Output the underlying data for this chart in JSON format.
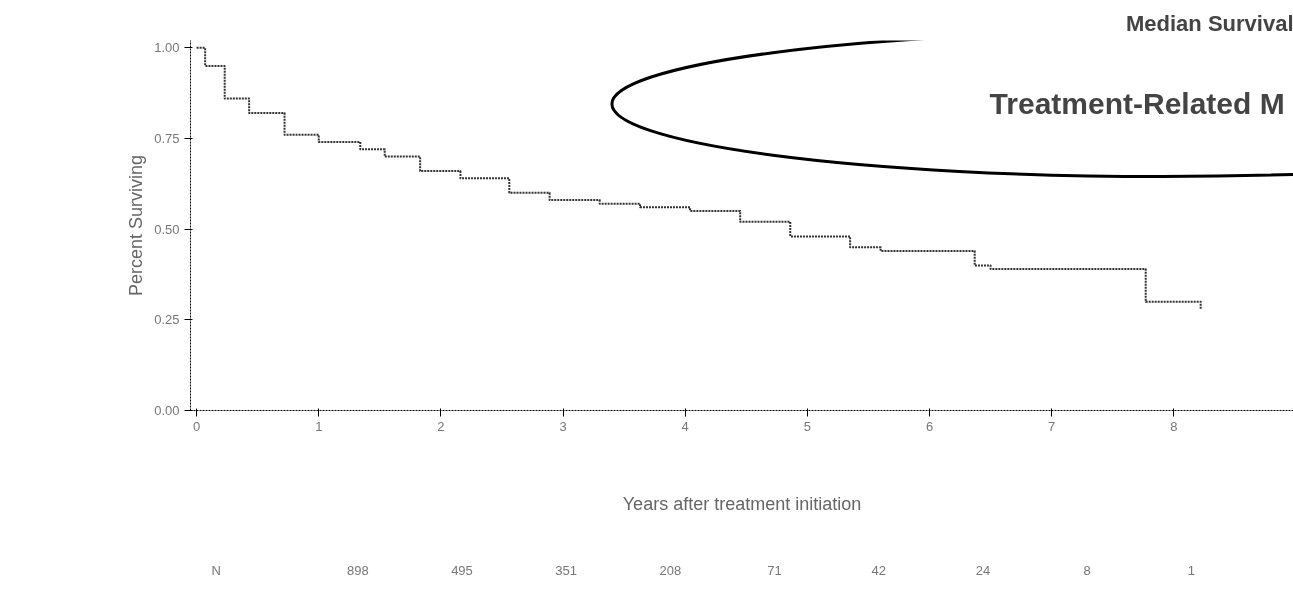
{
  "chart_data": {
    "type": "step",
    "title": "Median Survival",
    "xlabel": "Years after treatment initiation",
    "ylabel": "Percent Surviving",
    "x": [
      0,
      0.07,
      0.23,
      0.43,
      0.72,
      1.0,
      1.34,
      1.54,
      1.83,
      2.16,
      2.56,
      2.89,
      3.3,
      3.63,
      4.04,
      4.45,
      4.86,
      5.35,
      5.6,
      6.25,
      6.37,
      6.5,
      7.73,
      7.77,
      8.22
    ],
    "series": [
      {
        "color": "#333333",
        "values": [
          1.0,
          0.95,
          0.86,
          0.82,
          0.76,
          0.74,
          0.72,
          0.7,
          0.66,
          0.64,
          0.6,
          0.58,
          0.57,
          0.56,
          0.55,
          0.52,
          0.48,
          0.45,
          0.44,
          0.44,
          0.4,
          0.39,
          0.39,
          0.3,
          0.28
        ]
      }
    ],
    "xlim": [
      -0.05,
      8.98
    ],
    "ylim": [
      0,
      1.02
    ],
    "xticks": [
      0,
      1,
      2,
      3,
      4,
      5,
      6,
      7,
      8
    ],
    "yticks": [
      {
        "value": 0,
        "label": "0.00"
      },
      {
        "value": 0.25,
        "label": "0.25"
      },
      {
        "value": 0.5,
        "label": "0.50"
      },
      {
        "value": 0.75,
        "label": "0.75"
      },
      {
        "value": 1,
        "label": "1.00"
      }
    ],
    "grid": false,
    "line_style": "dotted",
    "annotations": [
      "Treatment-Related M",
      "N",
      "898",
      "495",
      "351",
      "208",
      "71",
      "42",
      "24",
      "8",
      "1"
    ]
  }
}
